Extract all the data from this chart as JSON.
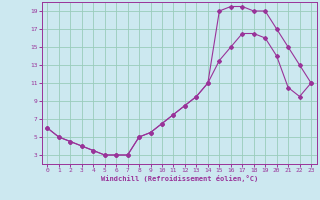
{
  "xlabel": "Windchill (Refroidissement éolien,°C)",
  "bg_color": "#cce8f0",
  "grid_color": "#99ccbb",
  "line_color": "#993399",
  "spine_color": "#993399",
  "xlim": [
    -0.5,
    23.5
  ],
  "ylim": [
    2,
    20
  ],
  "xticks": [
    0,
    1,
    2,
    3,
    4,
    5,
    6,
    7,
    8,
    9,
    10,
    11,
    12,
    13,
    14,
    15,
    16,
    17,
    18,
    19,
    20,
    21,
    22,
    23
  ],
  "yticks": [
    3,
    5,
    7,
    9,
    11,
    13,
    15,
    17,
    19
  ],
  "line1_x": [
    0,
    1,
    2,
    3,
    4,
    5,
    6,
    7,
    8,
    9,
    10,
    11,
    12,
    13,
    14,
    15,
    16,
    17,
    18,
    19,
    20,
    21,
    22,
    23
  ],
  "line1_y": [
    6.0,
    5.0,
    4.5,
    4.0,
    3.5,
    3.0,
    3.0,
    3.0,
    5.0,
    5.5,
    6.5,
    7.5,
    8.5,
    9.5,
    11.0,
    19.0,
    19.5,
    19.5,
    19.0,
    19.0,
    17.0,
    15.0,
    13.0,
    11.0
  ],
  "line2_x": [
    0,
    1,
    2,
    3,
    4,
    5,
    6,
    7,
    8,
    9,
    10,
    11,
    12,
    13,
    14,
    15,
    16,
    17,
    18,
    19,
    20,
    21,
    22,
    23
  ],
  "line2_y": [
    6.0,
    5.0,
    4.5,
    4.0,
    3.5,
    3.0,
    3.0,
    3.0,
    5.0,
    5.5,
    6.5,
    7.5,
    8.5,
    9.5,
    11.0,
    13.5,
    15.0,
    16.5,
    16.5,
    16.0,
    14.0,
    10.5,
    9.5,
    11.0
  ],
  "font_size_tick": 4.5,
  "font_size_xlabel": 5.0,
  "lw": 0.8,
  "ms": 2.0
}
